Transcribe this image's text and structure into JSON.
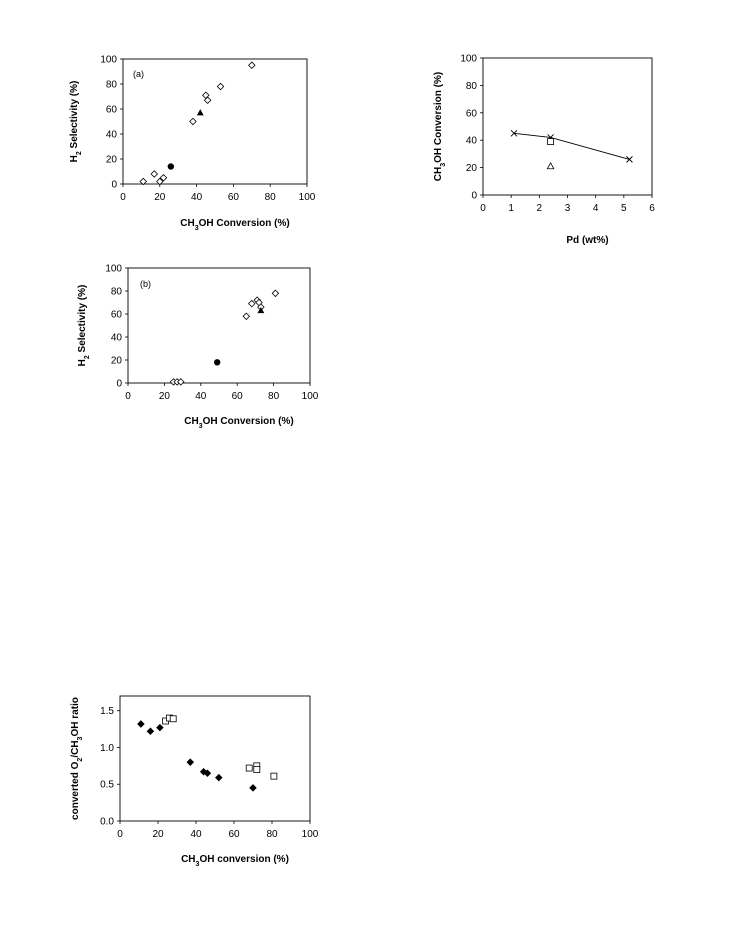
{
  "chart_data": [
    {
      "id": "chartA",
      "type": "scatter",
      "panel_label": "(a)",
      "xlabel": {
        "pre": "CH",
        "sub1": "3",
        "post": "OH Conversion (%)"
      },
      "ylabel": {
        "pre": "H",
        "sub1": "2",
        "post": " Selectivity (%)"
      },
      "xlim": [
        0,
        100
      ],
      "ylim": [
        0,
        100
      ],
      "xticks": [
        0,
        20,
        40,
        60,
        80,
        100
      ],
      "yticks": [
        0,
        20,
        40,
        60,
        80,
        100
      ],
      "grid": false,
      "series": [
        {
          "marker": "diamond-open",
          "x": [
            11,
            17,
            20,
            22,
            38,
            45,
            46,
            53,
            70
          ],
          "y": [
            2,
            8,
            2,
            5,
            50,
            71,
            67,
            78,
            95
          ]
        },
        {
          "marker": "triangle-filled",
          "x": [
            42
          ],
          "y": [
            57
          ]
        },
        {
          "marker": "circle-filled",
          "x": [
            26
          ],
          "y": [
            14
          ]
        }
      ]
    },
    {
      "id": "chartB",
      "type": "line",
      "panel_label": "",
      "xlabel": {
        "pre": "Pd (wt%)",
        "sub1": "",
        "post": ""
      },
      "ylabel": {
        "pre": "CH",
        "sub1": "3",
        "post": "OH Conversion (%)"
      },
      "xlim": [
        0,
        6
      ],
      "ylim": [
        0,
        100
      ],
      "xticks": [
        0,
        1,
        2,
        3,
        4,
        5,
        6
      ],
      "yticks": [
        0,
        20,
        40,
        60,
        80,
        100
      ],
      "grid": false,
      "series": [
        {
          "marker": "x",
          "line": true,
          "x": [
            1.1,
            2.4,
            5.2
          ],
          "y": [
            45,
            42,
            26
          ]
        },
        {
          "marker": "square-open",
          "x": [
            2.4
          ],
          "y": [
            39
          ]
        },
        {
          "marker": "triangle-open",
          "x": [
            2.4
          ],
          "y": [
            21
          ]
        }
      ]
    },
    {
      "id": "chartC",
      "type": "scatter",
      "panel_label": "(b)",
      "xlabel": {
        "pre": "CH",
        "sub1": "3",
        "post": "OH Conversion (%)"
      },
      "ylabel": {
        "pre": "H",
        "sub1": "2",
        "post": " Selectivity (%)"
      },
      "xlim": [
        0,
        100
      ],
      "ylim": [
        0,
        100
      ],
      "xticks": [
        0,
        20,
        40,
        60,
        80,
        100
      ],
      "yticks": [
        0,
        20,
        40,
        60,
        80,
        100
      ],
      "grid": false,
      "series": [
        {
          "marker": "diamond-open",
          "x": [
            25,
            27,
            29,
            65,
            68,
            71,
            72,
            73,
            81
          ],
          "y": [
            1,
            1,
            1,
            58,
            69,
            72,
            70,
            66,
            78
          ]
        },
        {
          "marker": "triangle-filled",
          "x": [
            73
          ],
          "y": [
            63
          ]
        },
        {
          "marker": "circle-filled",
          "x": [
            49
          ],
          "y": [
            18
          ]
        }
      ]
    },
    {
      "id": "chartD",
      "type": "scatter",
      "panel_label": "",
      "xlabel": {
        "pre": "CH",
        "sub1": "3",
        "post": "OH conversion  (%)"
      },
      "ylabel": {
        "pre": "converted O",
        "sub1": "2",
        "mid": "/CH",
        "sub2": "3",
        "post": "OH ratio"
      },
      "xlim": [
        0,
        100
      ],
      "ylim": [
        0,
        1.7
      ],
      "xticks": [
        0,
        20,
        40,
        60,
        80,
        100
      ],
      "yticks": [
        0.0,
        0.5,
        1.0,
        1.5
      ],
      "ytick_labels": [
        "0.0",
        "0.5",
        "1.0",
        "1.5"
      ],
      "grid": false,
      "series": [
        {
          "marker": "diamond-filled",
          "x": [
            11,
            16,
            21,
            37,
            44,
            46,
            52,
            70
          ],
          "y": [
            1.32,
            1.22,
            1.27,
            0.8,
            0.67,
            0.65,
            0.59,
            0.45
          ]
        },
        {
          "marker": "square-open",
          "x": [
            24,
            26,
            28,
            68,
            72,
            72,
            81
          ],
          "y": [
            1.36,
            1.4,
            1.39,
            0.72,
            0.75,
            0.7,
            0.61
          ]
        }
      ]
    }
  ]
}
